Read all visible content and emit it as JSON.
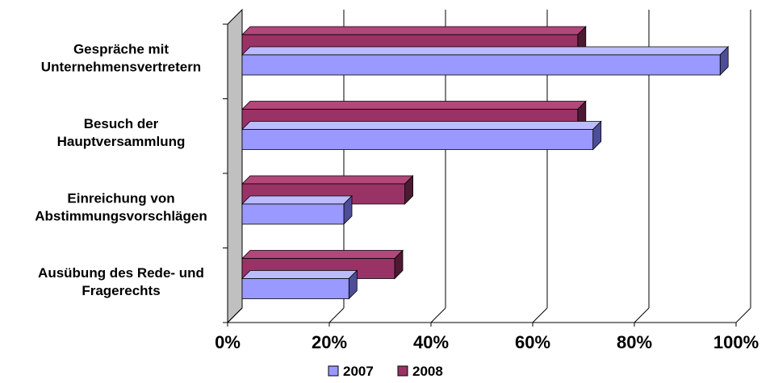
{
  "chart_data": {
    "type": "bar",
    "orientation": "horizontal",
    "style": "3d-clustered",
    "categories": [
      [
        "Gespräche mit",
        "Unternehmensvertretern"
      ],
      [
        "Besuch der",
        "Hauptversammlung"
      ],
      [
        "Einreichung von",
        "Abstimmungsvorschlägen"
      ],
      [
        "Ausübung des Rede- und",
        "Fragerechts"
      ]
    ],
    "series": [
      {
        "name": "2007",
        "values": [
          94,
          69,
          20,
          21
        ],
        "color": "#9999ff",
        "side_color": "#4d4d99",
        "top_color": "#bbbbff"
      },
      {
        "name": "2008",
        "values": [
          66,
          66,
          32,
          30
        ],
        "color": "#993366",
        "side_color": "#4d1a33",
        "top_color": "#b3477a"
      }
    ],
    "x_ticks": [
      "0%",
      "20%",
      "40%",
      "60%",
      "80%",
      "100%"
    ],
    "xlim": [
      0,
      100
    ],
    "grid": true,
    "legend_position": "bottom"
  }
}
